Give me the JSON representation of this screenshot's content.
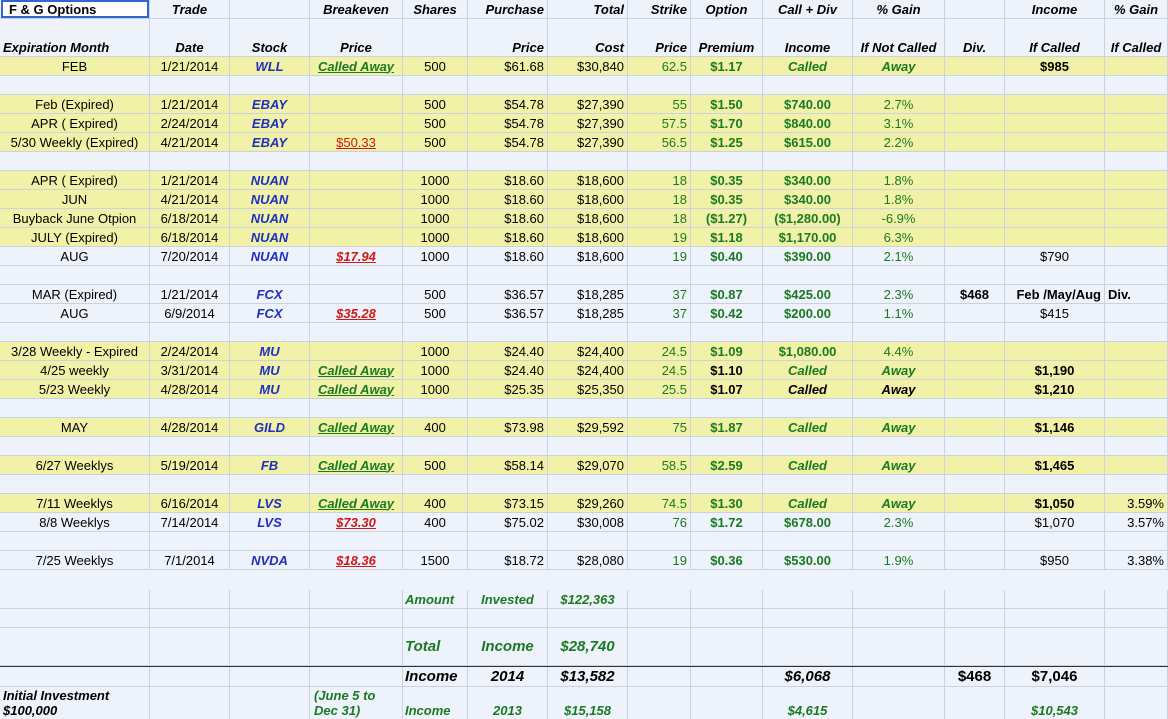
{
  "title": "F & G Options",
  "headers": {
    "line1": [
      "",
      "Trade",
      "",
      "Breakeven",
      "Shares",
      "Purchase",
      "Total",
      "Strike",
      "Option",
      "Call + Div",
      "% Gain",
      "",
      "Income",
      "% Gain"
    ],
    "line2": [
      "Expiration Month",
      "Date",
      "Stock",
      "Price",
      "",
      "Price",
      "Cost",
      "Price",
      "Premium",
      "Income",
      "If Not Called",
      "Div.",
      "If Called",
      "If Called"
    ]
  },
  "rows": [
    {
      "bg": "y",
      "cells": [
        "FEB",
        "1/21/2014",
        "WLL",
        "Called Away",
        "500",
        "$61.68",
        "$30,840",
        "62.5",
        "$1.17",
        "Called",
        "Away",
        "",
        "$985",
        ""
      ]
    },
    {
      "bg": "w",
      "cells": [
        "",
        "",
        "",
        "",
        "",
        "",
        "",
        "",
        "",
        "",
        "",
        "",
        "",
        ""
      ]
    },
    {
      "bg": "y",
      "cells": [
        "Feb (Expired)",
        "1/21/2014",
        "EBAY",
        "",
        "500",
        "$54.78",
        "$27,390",
        "55",
        "$1.50",
        "$740.00",
        "2.7%",
        "",
        "",
        ""
      ]
    },
    {
      "bg": "y",
      "cells": [
        "APR ( Expired)",
        "2/24/2014",
        "EBAY",
        "",
        "500",
        "$54.78",
        "$27,390",
        "57.5",
        "$1.70",
        "$840.00",
        "3.1%",
        "",
        "",
        ""
      ]
    },
    {
      "bg": "y",
      "cells": [
        "5/30 Weekly (Expired)",
        "4/21/2014",
        "EBAY",
        "$50.33",
        "500",
        "$54.78",
        "$27,390",
        "56.5",
        "$1.25",
        "$615.00",
        "2.2%",
        "",
        "",
        ""
      ]
    },
    {
      "bg": "w",
      "cells": [
        "",
        "",
        "",
        "",
        "",
        "",
        "",
        "",
        "",
        "",
        "",
        "",
        "",
        ""
      ]
    },
    {
      "bg": "y",
      "cells": [
        "APR ( Expired)",
        "1/21/2014",
        "NUAN",
        "",
        "1000",
        "$18.60",
        "$18,600",
        "18",
        "$0.35",
        "$340.00",
        "1.8%",
        "",
        "",
        ""
      ]
    },
    {
      "bg": "y",
      "cells": [
        "JUN",
        "4/21/2014",
        "NUAN",
        "",
        "1000",
        "$18.60",
        "$18,600",
        "18",
        "$0.35",
        "$340.00",
        "1.8%",
        "",
        "",
        ""
      ]
    },
    {
      "bg": "y",
      "cells": [
        "Buyback June Otpion",
        "6/18/2014",
        "NUAN",
        "",
        "1000",
        "$18.60",
        "$18,600",
        "18",
        "($1.27)",
        "($1,280.00)",
        "-6.9%",
        "",
        "",
        ""
      ]
    },
    {
      "bg": "y",
      "cells": [
        "JULY (Expired)",
        "6/18/2014",
        "NUAN",
        "",
        "1000",
        "$18.60",
        "$18,600",
        "19",
        "$1.18",
        "$1,170.00",
        "6.3%",
        "",
        "",
        ""
      ]
    },
    {
      "bg": "w",
      "cells": [
        "AUG",
        "7/20/2014",
        "NUAN",
        "$17.94",
        "1000",
        "$18.60",
        "$18,600",
        "19",
        "$0.40",
        "$390.00",
        "2.1%",
        "",
        "$790",
        ""
      ]
    },
    {
      "bg": "w",
      "cells": [
        "",
        "",
        "",
        "",
        "",
        "",
        "",
        "",
        "",
        "",
        "",
        "",
        "",
        ""
      ]
    },
    {
      "bg": "w",
      "cells": [
        "MAR (Expired)",
        "1/21/2014",
        "FCX",
        "",
        "500",
        "$36.57",
        "$18,285",
        "37",
        "$0.87",
        "$425.00",
        "2.3%",
        "$468",
        "Feb /May/Aug",
        "Div."
      ]
    },
    {
      "bg": "w",
      "cells": [
        "AUG",
        "6/9/2014",
        "FCX",
        "$35.28",
        "500",
        "$36.57",
        "$18,285",
        "37",
        "$0.42",
        "$200.00",
        "1.1%",
        "",
        "$415",
        ""
      ]
    },
    {
      "bg": "w",
      "cells": [
        "",
        "",
        "",
        "",
        "",
        "",
        "",
        "",
        "",
        "",
        "",
        "",
        "",
        ""
      ]
    },
    {
      "bg": "y",
      "cells": [
        "3/28 Weekly - Expired",
        "2/24/2014",
        "MU",
        "",
        "1000",
        "$24.40",
        "$24,400",
        "24.5",
        "$1.09",
        "$1,080.00",
        "4.4%",
        "",
        "",
        ""
      ]
    },
    {
      "bg": "y",
      "cells": [
        "4/25 weekly",
        "3/31/2014",
        "MU",
        "Called Away",
        "1000",
        "$24.40",
        "$24,400",
        "24.5",
        "$1.10",
        "Called",
        "Away",
        "",
        "$1,190",
        ""
      ]
    },
    {
      "bg": "y",
      "cells": [
        "5/23 Weekly",
        "4/28/2014",
        "MU",
        "Called Away",
        "1000",
        "$25.35",
        "$25,350",
        "25.5",
        "$1.07",
        "Called",
        "Away",
        "",
        "$1,210",
        ""
      ]
    },
    {
      "bg": "w",
      "cells": [
        "",
        "",
        "",
        "",
        "",
        "",
        "",
        "",
        "",
        "",
        "",
        "",
        "",
        ""
      ]
    },
    {
      "bg": "y",
      "cells": [
        "MAY",
        "4/28/2014",
        "GILD",
        "Called Away",
        "400",
        "$73.98",
        "$29,592",
        "75",
        "$1.87",
        "Called",
        "Away",
        "",
        "$1,146",
        ""
      ]
    },
    {
      "bg": "w",
      "cells": [
        "",
        "",
        "",
        "",
        "",
        "",
        "",
        "",
        "",
        "",
        "",
        "",
        "",
        ""
      ]
    },
    {
      "bg": "y",
      "cells": [
        "6/27 Weeklys",
        "5/19/2014",
        "FB",
        "Called Away",
        "500",
        "$58.14",
        "$29,070",
        "58.5",
        "$2.59",
        "Called",
        "Away",
        "",
        "$1,465",
        ""
      ]
    },
    {
      "bg": "w",
      "cells": [
        "",
        "",
        "",
        "",
        "",
        "",
        "",
        "",
        "",
        "",
        "",
        "",
        "",
        ""
      ]
    },
    {
      "bg": "y",
      "cells": [
        "7/11 Weeklys",
        "6/16/2014",
        "LVS",
        "Called Away",
        "400",
        "$73.15",
        "$29,260",
        "74.5",
        "$1.30",
        "Called",
        "Away",
        "",
        "$1,050",
        "3.59%"
      ]
    },
    {
      "bg": "w",
      "cells": [
        "8/8 Weeklys",
        "7/14/2014",
        "LVS",
        "$73.30",
        "400",
        "$75.02",
        "$30,008",
        "76",
        "$1.72",
        "$678.00",
        "2.3%",
        "",
        "$1,070",
        "3.57%"
      ]
    },
    {
      "bg": "w",
      "cells": [
        "",
        "",
        "",
        "",
        "",
        "",
        "",
        "",
        "",
        "",
        "",
        "",
        "",
        ""
      ]
    },
    {
      "bg": "w",
      "cells": [
        "7/25 Weeklys",
        "7/1/2014",
        "NVDA",
        "$18.36",
        "1500",
        "$18.72",
        "$28,080",
        "19",
        "$0.36",
        "$530.00",
        "1.9%",
        "",
        "$950",
        "3.38%"
      ]
    }
  ],
  "summary": {
    "amount_label": "Amount",
    "invested_label": "Invested",
    "invested_value": "$122,363",
    "total_label": "Total",
    "income_label": "Income",
    "total_value": "$28,740",
    "income2014_label": "Income",
    "year2014": "2014",
    "income2014_value": "$13,582",
    "call_div_2014": "$6,068",
    "div_2014": "$468",
    "called_2014": "$7,046",
    "initial_investment_label": "Initial Investment",
    "initial_investment_value": "$100,000",
    "period_line1": "(June 5 to",
    "period_line2": "Dec 31)",
    "income2013_label": "Income",
    "year2013": "2013",
    "income2013_value": "$15,158",
    "call_div_2013": "$4,615",
    "called_2013": "$10,543"
  }
}
